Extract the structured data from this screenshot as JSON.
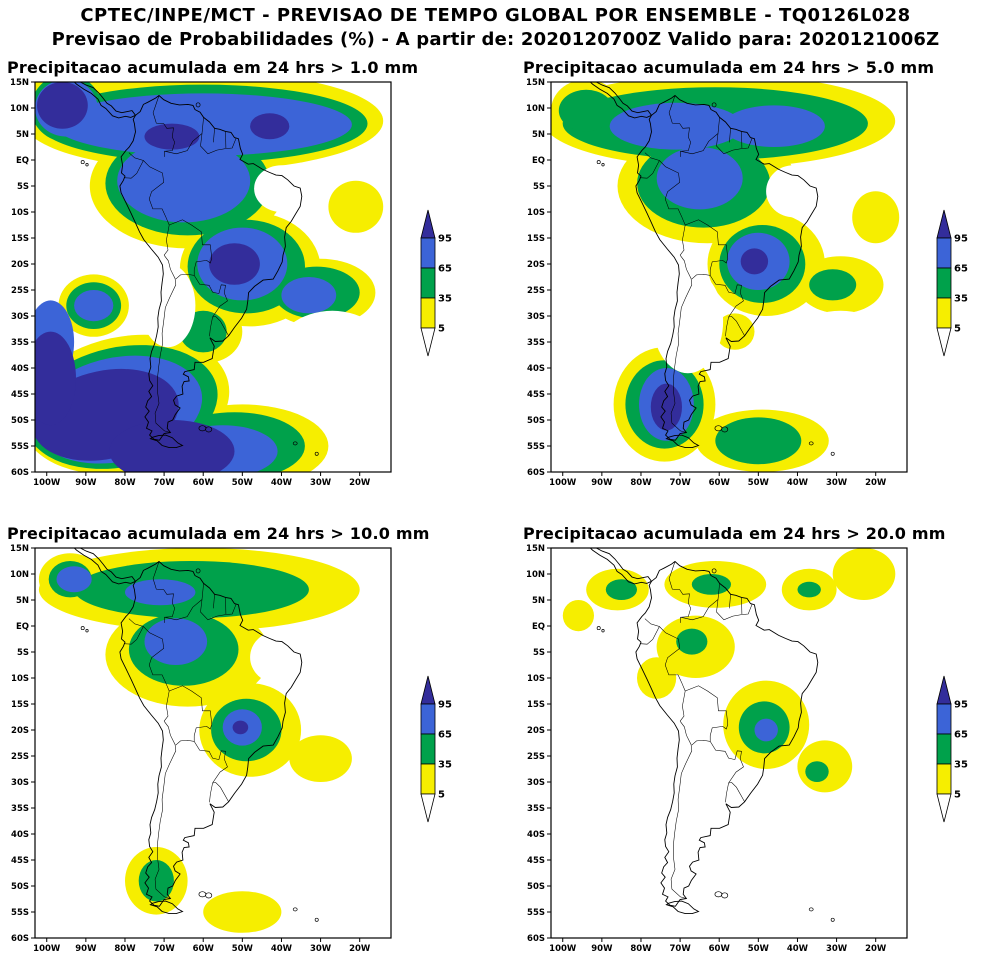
{
  "header": {
    "title_line1": "CPTEC/INPE/MCT - PREVISAO DE TEMPO GLOBAL POR ENSEMBLE - TQ0126L028",
    "title_line2": "Previsao de Probabilidades (%) -  A partir de: 2020120700Z  Valido para: 2020121006Z",
    "init_time": "2020120700Z",
    "valid_time": "2020121006Z"
  },
  "chart_data": {
    "type": "heatmap",
    "subtype": "filled_contour_probability_maps",
    "region": "South America",
    "units": "%",
    "axes": {
      "lat_ticks": [
        "15N",
        "10N",
        "5N",
        "EQ",
        "5S",
        "10S",
        "15S",
        "20S",
        "25S",
        "30S",
        "35S",
        "40S",
        "45S",
        "50S",
        "55S",
        "60S"
      ],
      "lon_ticks": [
        "100W",
        "90W",
        "80W",
        "70W",
        "60W",
        "50W",
        "40W",
        "30W",
        "20W"
      ],
      "lat_range": [
        -60,
        15
      ],
      "lon_range": [
        -103,
        -12
      ]
    },
    "legend": {
      "labels": [
        "95",
        "65",
        "35",
        "5"
      ],
      "levels_percent": [
        95,
        65,
        35,
        5
      ],
      "colors": {
        "c_gt95": "#332d9b",
        "c65_95": "#3c64d7",
        "c35_65": "#00a14b",
        "c5_35": "#f6ee00",
        "c_lt5": "#ffffff"
      }
    },
    "regions_format": "[lon_center, lat_center, lon_radius_deg, lat_radius_deg, rotation_deg(optional)] approximate shaded probability areas; p5/p35/p65/p95 = prob >= 5/35/65/95 %, p0 = white (<5%) holes",
    "panels": [
      {
        "title": "Precipitacao acumulada em 24 hrs > 1.0 mm",
        "threshold_mm": 1.0,
        "regions": {
          "p5": [
            [
              -60,
              7.5,
              46,
              9.5
            ],
            [
              -95,
              10,
              11,
              8
            ],
            [
              -64,
              -5,
              25,
              12
            ],
            [
              -48,
              -21,
              18,
              11
            ],
            [
              -30,
              -25.5,
              14,
              6.5
            ],
            [
              -59,
              -33,
              9,
              6
            ],
            [
              -80,
              -47,
              27,
              13,
              -12
            ],
            [
              -50,
              -55,
              22,
              8
            ],
            [
              -88,
              -28,
              9,
              6
            ],
            [
              -21,
              -9,
              7,
              5
            ]
          ],
          "p35": [
            [
              -60,
              7,
              42,
              7.5
            ],
            [
              -95,
              10,
              9,
              6.5
            ],
            [
              -64,
              -4.5,
              21,
              10
            ],
            [
              -49,
              -20.5,
              15,
              9
            ],
            [
              -31,
              -25.5,
              11,
              5
            ],
            [
              -60,
              -33,
              6,
              4
            ],
            [
              -81,
              -47.5,
              25,
              11.5,
              -12
            ],
            [
              -52,
              -55,
              18,
              6.5
            ],
            [
              -88,
              -28,
              7,
              4.5
            ]
          ],
          "p65": [
            [
              -60,
              6.8,
              38,
              6
            ],
            [
              -95,
              10,
              8,
              5.5
            ],
            [
              -65,
              -4,
              17,
              8
            ],
            [
              -50,
              -20,
              11.5,
              7
            ],
            [
              -33,
              -26,
              7,
              3.5
            ],
            [
              -82,
              -48,
              22,
              10,
              -12
            ],
            [
              -55,
              -56,
              14,
              5
            ],
            [
              -88,
              -28,
              5,
              3
            ],
            [
              -99,
              -35,
              6,
              8
            ]
          ],
          "p95": [
            [
              -96,
              10.5,
              6.5,
              4.5
            ],
            [
              -43,
              6.5,
              5,
              2.5
            ],
            [
              -68,
              4.5,
              7,
              2.5
            ],
            [
              -52,
              -20,
              6.5,
              4
            ],
            [
              -85,
              -49,
              19,
              8.5,
              -12
            ],
            [
              -68,
              -56,
              16,
              6
            ],
            [
              -99,
              -42,
              6.5,
              9
            ]
          ],
          "p0": [
            [
              -40,
              -5.5,
              7,
              4.5
            ],
            [
              -69,
              -28,
              7,
              8
            ],
            [
              -27,
              -38,
              15,
              9
            ]
          ]
        }
      },
      {
        "title": "Precipitacao acumulada em 24 hrs > 5.0 mm",
        "threshold_mm": 5.0,
        "regions": {
          "p5": [
            [
              -60,
              7.5,
              45,
              9
            ],
            [
              -94,
              9.5,
              9,
              6
            ],
            [
              -63,
              -5,
              23,
              11
            ],
            [
              -48,
              -20,
              15,
              10
            ],
            [
              -29,
              -24,
              11,
              5.5
            ],
            [
              -74,
              -47,
              13,
              11
            ],
            [
              -49,
              -54,
              17,
              6
            ],
            [
              -20,
              -11,
              6,
              5
            ],
            [
              -56,
              -33,
              5,
              3.5
            ]
          ],
          "p35": [
            [
              -61,
              7,
              39,
              7
            ],
            [
              -94,
              9.5,
              7,
              4
            ],
            [
              -64,
              -4.5,
              17,
              8.5
            ],
            [
              -49,
              -20,
              11,
              7.5
            ],
            [
              -74,
              -47,
              10,
              8.5
            ],
            [
              -50,
              -54,
              11,
              4.5
            ],
            [
              -31,
              -24,
              6,
              3
            ]
          ],
          "p65": [
            [
              -71,
              6.5,
              17,
              4.5
            ],
            [
              -46,
              6.5,
              13,
              4
            ],
            [
              -65,
              -3.5,
              11,
              6
            ],
            [
              -50,
              -19.5,
              8,
              5.5
            ],
            [
              -73.5,
              -47,
              7,
              7
            ]
          ],
          "p95": [
            [
              -73.5,
              -47.5,
              4,
              4.5
            ],
            [
              -51,
              -19.5,
              3.5,
              2.5
            ]
          ],
          "p0": [
            [
              -41,
              -6,
              7,
              5
            ],
            [
              -68,
              -31,
              9,
              10
            ],
            [
              -29,
              -39,
              16,
              10
            ]
          ]
        }
      },
      {
        "title": "Precipitacao acumulada em 24 hrs > 10.0 mm",
        "threshold_mm": 10.0,
        "regions": {
          "p5": [
            [
              -61,
              7,
              41,
              8
            ],
            [
              -94,
              9,
              8,
              5
            ],
            [
              -64,
              -5.5,
              21,
              10
            ],
            [
              -48,
              -20,
              13,
              9
            ],
            [
              -30,
              -25.5,
              8,
              4.5
            ],
            [
              -72,
              -49,
              8,
              6.5
            ],
            [
              -50,
              -55,
              10,
              4
            ]
          ],
          "p35": [
            [
              -63,
              7,
              30,
              5.5
            ],
            [
              -94,
              9,
              5.5,
              3.5
            ],
            [
              -65,
              -4.5,
              14,
              7
            ],
            [
              -49,
              -20,
              9,
              6
            ],
            [
              -72,
              -49,
              4.5,
              4
            ]
          ],
          "p65": [
            [
              -93,
              9,
              4.5,
              2.5
            ],
            [
              -71,
              6.5,
              9,
              2.5
            ],
            [
              -67,
              -3,
              8,
              4.5
            ],
            [
              -50,
              -19.5,
              5,
              3.5
            ]
          ],
          "p95": [
            [
              -50.5,
              -19.5,
              2,
              1.3
            ]
          ],
          "p0": [
            [
              -41,
              -6,
              7,
              5
            ],
            [
              -68,
              -31,
              9,
              10
            ],
            [
              -29,
              -39,
              14,
              9
            ]
          ]
        }
      },
      {
        "title": "Precipitacao acumulada em 24 hrs > 20.0 mm",
        "threshold_mm": 20.0,
        "regions": {
          "p5": [
            [
              -86,
              7,
              8,
              4
            ],
            [
              -61,
              8,
              13,
              4.5
            ],
            [
              -37,
              7,
              7,
              4
            ],
            [
              -23,
              10,
              8,
              5
            ],
            [
              -66,
              -4,
              10,
              6
            ],
            [
              -48,
              -19,
              11,
              8.5
            ],
            [
              -33,
              -27,
              7,
              5
            ],
            [
              -76,
              -10,
              5,
              4
            ],
            [
              -96,
              2,
              4,
              3
            ]
          ],
          "p35": [
            [
              -48.5,
              -19.5,
              6.5,
              5
            ],
            [
              -85,
              7,
              4,
              2
            ],
            [
              -62,
              8,
              5,
              2
            ],
            [
              -37,
              7,
              3,
              1.5
            ],
            [
              -67,
              -3,
              4,
              2.5
            ],
            [
              -35,
              -28,
              3,
              2
            ]
          ],
          "p65": [
            [
              -48,
              -20,
              3,
              2.2
            ]
          ],
          "p95": [],
          "p0": []
        }
      }
    ]
  }
}
